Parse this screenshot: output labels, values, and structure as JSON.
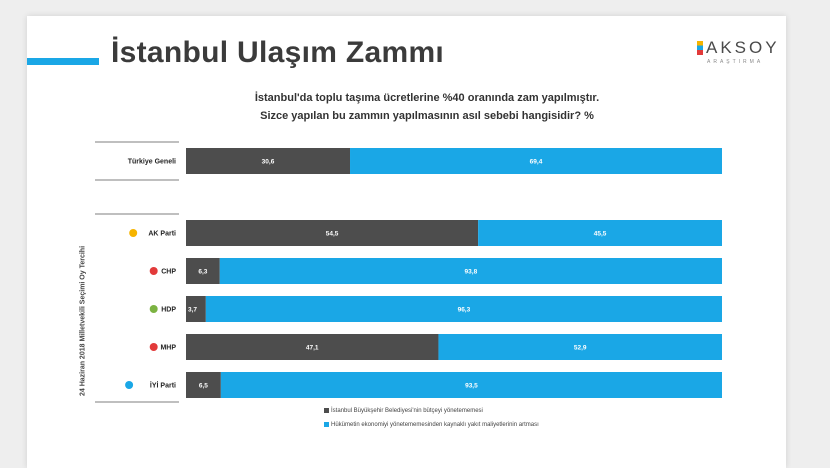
{
  "header": {
    "title": "İstanbul Ulaşım Zammı",
    "logo_text": "AKSOY",
    "logo_subtext": "ARAŞTIRMA",
    "question_line1": "İstanbul'da toplu taşıma ücretlerine %40 oranında zam yapılmıştır.",
    "question_line2": "Sizce yapılan bu zammın yapılmasının asıl sebebi hangisidir? %"
  },
  "side_label": "24 Haziran 2018 Milletvekili Seçimi Oy Tercihi",
  "colors": {
    "series1": "#4d4d4d",
    "series2": "#1aa7e6",
    "accent": "#1aa7e6"
  },
  "chart_data": {
    "type": "bar",
    "orientation": "horizontal",
    "stacked": true,
    "categories": [
      "Türkiye Geneli",
      "AK Parti",
      "CHP",
      "HDP",
      "MHP",
      "İYİ Parti"
    ],
    "category_icons": [
      "",
      "akparti-logo",
      "chp-logo",
      "hdp-logo",
      "mhp-logo",
      "iyi-parti-logo"
    ],
    "series": [
      {
        "name": "İstanbul Büyükşehir Belediyesi'nin bütçeyi yönetememesi",
        "values": [
          "30,6",
          "54,5",
          "6,3",
          "3,7",
          "47,1",
          "6,5"
        ]
      },
      {
        "name": "Hükümetin ekonomiyi yönetememesinden kaynaklı yakıt maliyetlerinin artması",
        "values": [
          "69,4",
          "45,5",
          "93,8",
          "96,3",
          "52,9",
          "93,5"
        ]
      }
    ],
    "xlim": [
      0,
      100
    ],
    "legend_position": "bottom"
  }
}
